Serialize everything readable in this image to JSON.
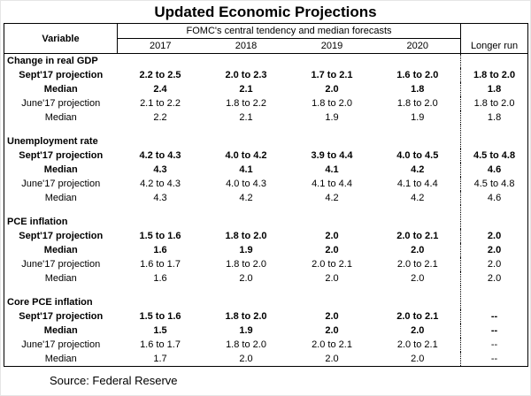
{
  "source": "Source: Federal Reserve",
  "chart_data": {
    "type": "table",
    "title": "Updated Economic Projections",
    "header": {
      "variable": "Variable",
      "group": "FOMC's central tendency and median forecasts",
      "years": [
        "2017",
        "2018",
        "2019",
        "2020"
      ],
      "longer_run": "Longer run"
    },
    "sections": [
      {
        "name": "Change in real GDP",
        "rows": [
          {
            "label": "Sept'17 projection",
            "bold": true,
            "values": [
              "2.2 to 2.5",
              "2.0 to 2.3",
              "1.7 to 2.1",
              "1.6 to 2.0",
              "1.8 to 2.0"
            ]
          },
          {
            "label": "Median",
            "bold": true,
            "values": [
              "2.4",
              "2.1",
              "2.0",
              "1.8",
              "1.8"
            ]
          },
          {
            "label": "June'17 projection",
            "bold": false,
            "values": [
              "2.1 to 2.2",
              "1.8 to 2.2",
              "1.8 to 2.0",
              "1.8 to 2.0",
              "1.8 to 2.0"
            ]
          },
          {
            "label": "Median",
            "bold": false,
            "values": [
              "2.2",
              "2.1",
              "1.9",
              "1.9",
              "1.8"
            ]
          }
        ]
      },
      {
        "name": "Unemployment rate",
        "rows": [
          {
            "label": "Sept'17 projection",
            "bold": true,
            "values": [
              "4.2 to 4.3",
              "4.0 to 4.2",
              "3.9 to 4.4",
              "4.0 to 4.5",
              "4.5 to 4.8"
            ]
          },
          {
            "label": "Median",
            "bold": true,
            "values": [
              "4.3",
              "4.1",
              "4.1",
              "4.2",
              "4.6"
            ]
          },
          {
            "label": "June'17 projection",
            "bold": false,
            "values": [
              "4.2 to 4.3",
              "4.0 to 4.3",
              "4.1 to 4.4",
              "4.1 to 4.4",
              "4.5 to 4.8"
            ]
          },
          {
            "label": "Median",
            "bold": false,
            "values": [
              "4.3",
              "4.2",
              "4.2",
              "4.2",
              "4.6"
            ]
          }
        ]
      },
      {
        "name": "PCE inflation",
        "rows": [
          {
            "label": "Sept'17 projection",
            "bold": true,
            "values": [
              "1.5 to 1.6",
              "1.8 to 2.0",
              "2.0",
              "2.0 to 2.1",
              "2.0"
            ]
          },
          {
            "label": "Median",
            "bold": true,
            "values": [
              "1.6",
              "1.9",
              "2.0",
              "2.0",
              "2.0"
            ]
          },
          {
            "label": "June'17 projection",
            "bold": false,
            "values": [
              "1.6 to 1.7",
              "1.8 to 2.0",
              "2.0 to 2.1",
              "2.0 to 2.1",
              "2.0"
            ]
          },
          {
            "label": "Median",
            "bold": false,
            "values": [
              "1.6",
              "2.0",
              "2.0",
              "2.0",
              "2.0"
            ]
          }
        ]
      },
      {
        "name": "Core PCE inflation",
        "rows": [
          {
            "label": "Sept'17 projection",
            "bold": true,
            "values": [
              "1.5 to 1.6",
              "1.8 to 2.0",
              "2.0",
              "2.0 to 2.1",
              "--"
            ]
          },
          {
            "label": "Median",
            "bold": true,
            "values": [
              "1.5",
              "1.9",
              "2.0",
              "2.0",
              "--"
            ]
          },
          {
            "label": "June'17 projection",
            "bold": false,
            "values": [
              "1.6 to 1.7",
              "1.8 to 2.0",
              "2.0 to 2.1",
              "2.0 to 2.1",
              "--"
            ]
          },
          {
            "label": "Median",
            "bold": false,
            "values": [
              "1.7",
              "2.0",
              "2.0",
              "2.0",
              "--"
            ]
          }
        ]
      }
    ]
  }
}
